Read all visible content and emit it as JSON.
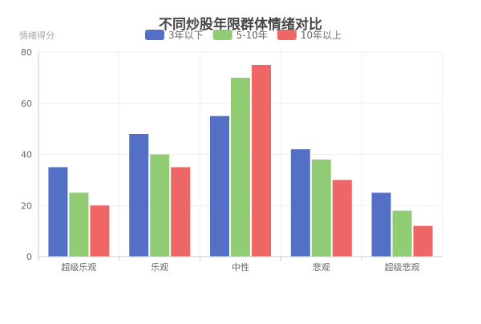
{
  "chart_data": {
    "type": "bar",
    "title": "不同炒股年限群体情绪对比",
    "ylabel": "情绪得分",
    "xlabel": "",
    "categories": [
      "超级乐观",
      "乐观",
      "中性",
      "悲观",
      "超级悲观"
    ],
    "series": [
      {
        "name": "3年以下",
        "color": "#5470c6",
        "values": [
          35,
          48,
          55,
          42,
          25
        ]
      },
      {
        "name": "5-10年",
        "color": "#91cc75",
        "values": [
          25,
          40,
          70,
          38,
          18
        ]
      },
      {
        "name": "10年以上",
        "color": "#ee6666",
        "values": [
          20,
          35,
          75,
          30,
          12
        ]
      }
    ],
    "ylim": [
      0,
      80
    ],
    "yticks": [
      "0",
      "20",
      "40",
      "60",
      "80"
    ],
    "grid": true,
    "legend": "top-center"
  }
}
